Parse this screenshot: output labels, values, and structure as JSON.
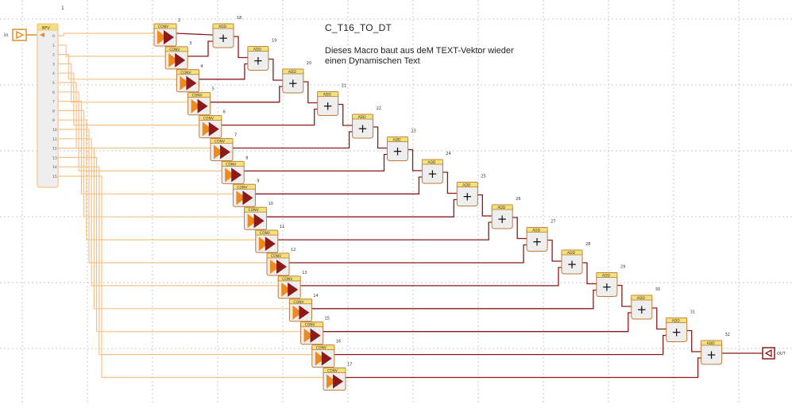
{
  "diagram": {
    "title": "C_T16_TO_DT",
    "description_line1": "Dieses Macro baut aus deM TEXT-Vektor wieder",
    "description_line2": "einen Dynamischen Text",
    "input_label": "in",
    "output_label": "OUT",
    "splitter": {
      "header": "BFV",
      "id": "1",
      "port_labels": [
        "0",
        "1",
        "2",
        "3",
        "4",
        "5",
        "6",
        "7",
        "8",
        "9",
        "10",
        "11",
        "12",
        "13",
        "14",
        "15"
      ]
    },
    "conv_header": "CONV",
    "add_header": "ADD",
    "add_symbol": "+",
    "conv_ids": [
      "2",
      "3",
      "4",
      "5",
      "6",
      "7",
      "8",
      "9",
      "10",
      "11",
      "12",
      "13",
      "14",
      "15",
      "16",
      "17"
    ],
    "add_ids": [
      "18",
      "19",
      "20",
      "21",
      "22",
      "23",
      "24",
      "25",
      "26",
      "27",
      "28",
      "29",
      "30",
      "31",
      "32"
    ]
  },
  "colors": {
    "grid": "#c8c8c8",
    "orange_wire": "#f7c28a",
    "dark_wire": "#8b1a1a",
    "block_header": "#f3e27a",
    "block_body": "#eeeeee",
    "block_border": "#c07a3a"
  }
}
